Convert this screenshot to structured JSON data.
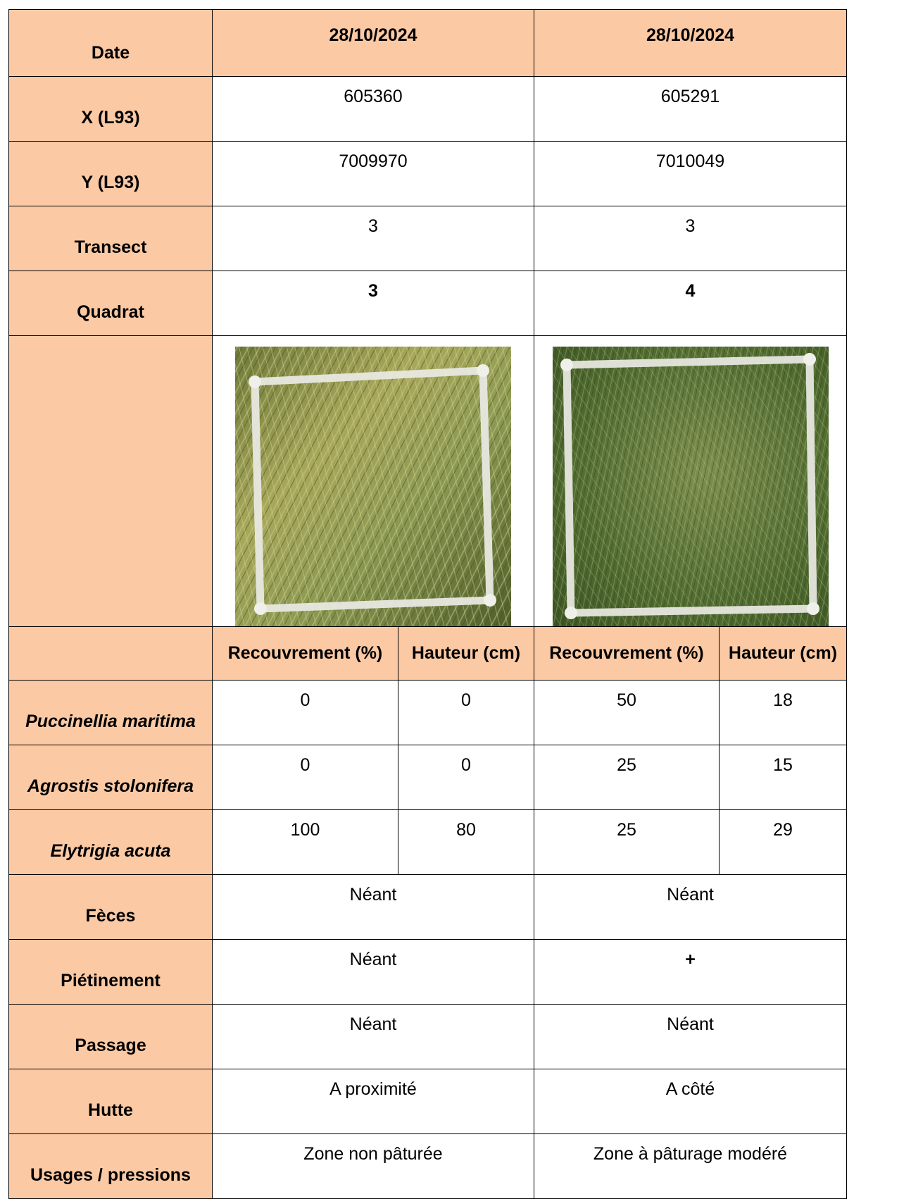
{
  "header": {
    "date_label": "Date",
    "col1_date": "28/10/2024",
    "col2_date": "28/10/2024"
  },
  "rows": {
    "x": {
      "label": "X (L93)",
      "v1": "605360",
      "v2": "605291"
    },
    "y": {
      "label": "Y (L93)",
      "v1": "7009970",
      "v2": "7010049"
    },
    "transect": {
      "label": "Transect",
      "v1": "3",
      "v2": "3"
    },
    "quadrat": {
      "label": "Quadrat",
      "v1": "3",
      "v2": "4"
    }
  },
  "photos": {
    "p1": "quadrat-3-grass-photo",
    "p2": "quadrat-4-grass-photo"
  },
  "subheader": {
    "cover": "Recouvrement (%)",
    "height": "Hauteur (cm)"
  },
  "species": [
    {
      "name": "Puccinellia maritima",
      "c1": "0",
      "h1": "0",
      "c2": "50",
      "h2": "18"
    },
    {
      "name": "Agrostis stolonifera",
      "c1": "0",
      "h1": "0",
      "c2": "25",
      "h2": "15"
    },
    {
      "name": "Elytrigia acuta",
      "c1": "100",
      "h1": "80",
      "c2": "25",
      "h2": "29"
    }
  ],
  "observations": [
    {
      "label": "Fèces",
      "v1": "Néant",
      "v2": "Néant"
    },
    {
      "label": "Piétinement",
      "v1": "Néant",
      "v2": "+"
    },
    {
      "label": "Passage",
      "v1": "Néant",
      "v2": "Néant"
    },
    {
      "label": "Hutte",
      "v1": "A proximité",
      "v2": "A côté"
    },
    {
      "label": "Usages / pressions",
      "v1": "Zone non pâturée",
      "v2": "Zone à pâturage modéré"
    }
  ],
  "colors": {
    "header_fill": "#fbc9a4",
    "border": "#000000"
  }
}
